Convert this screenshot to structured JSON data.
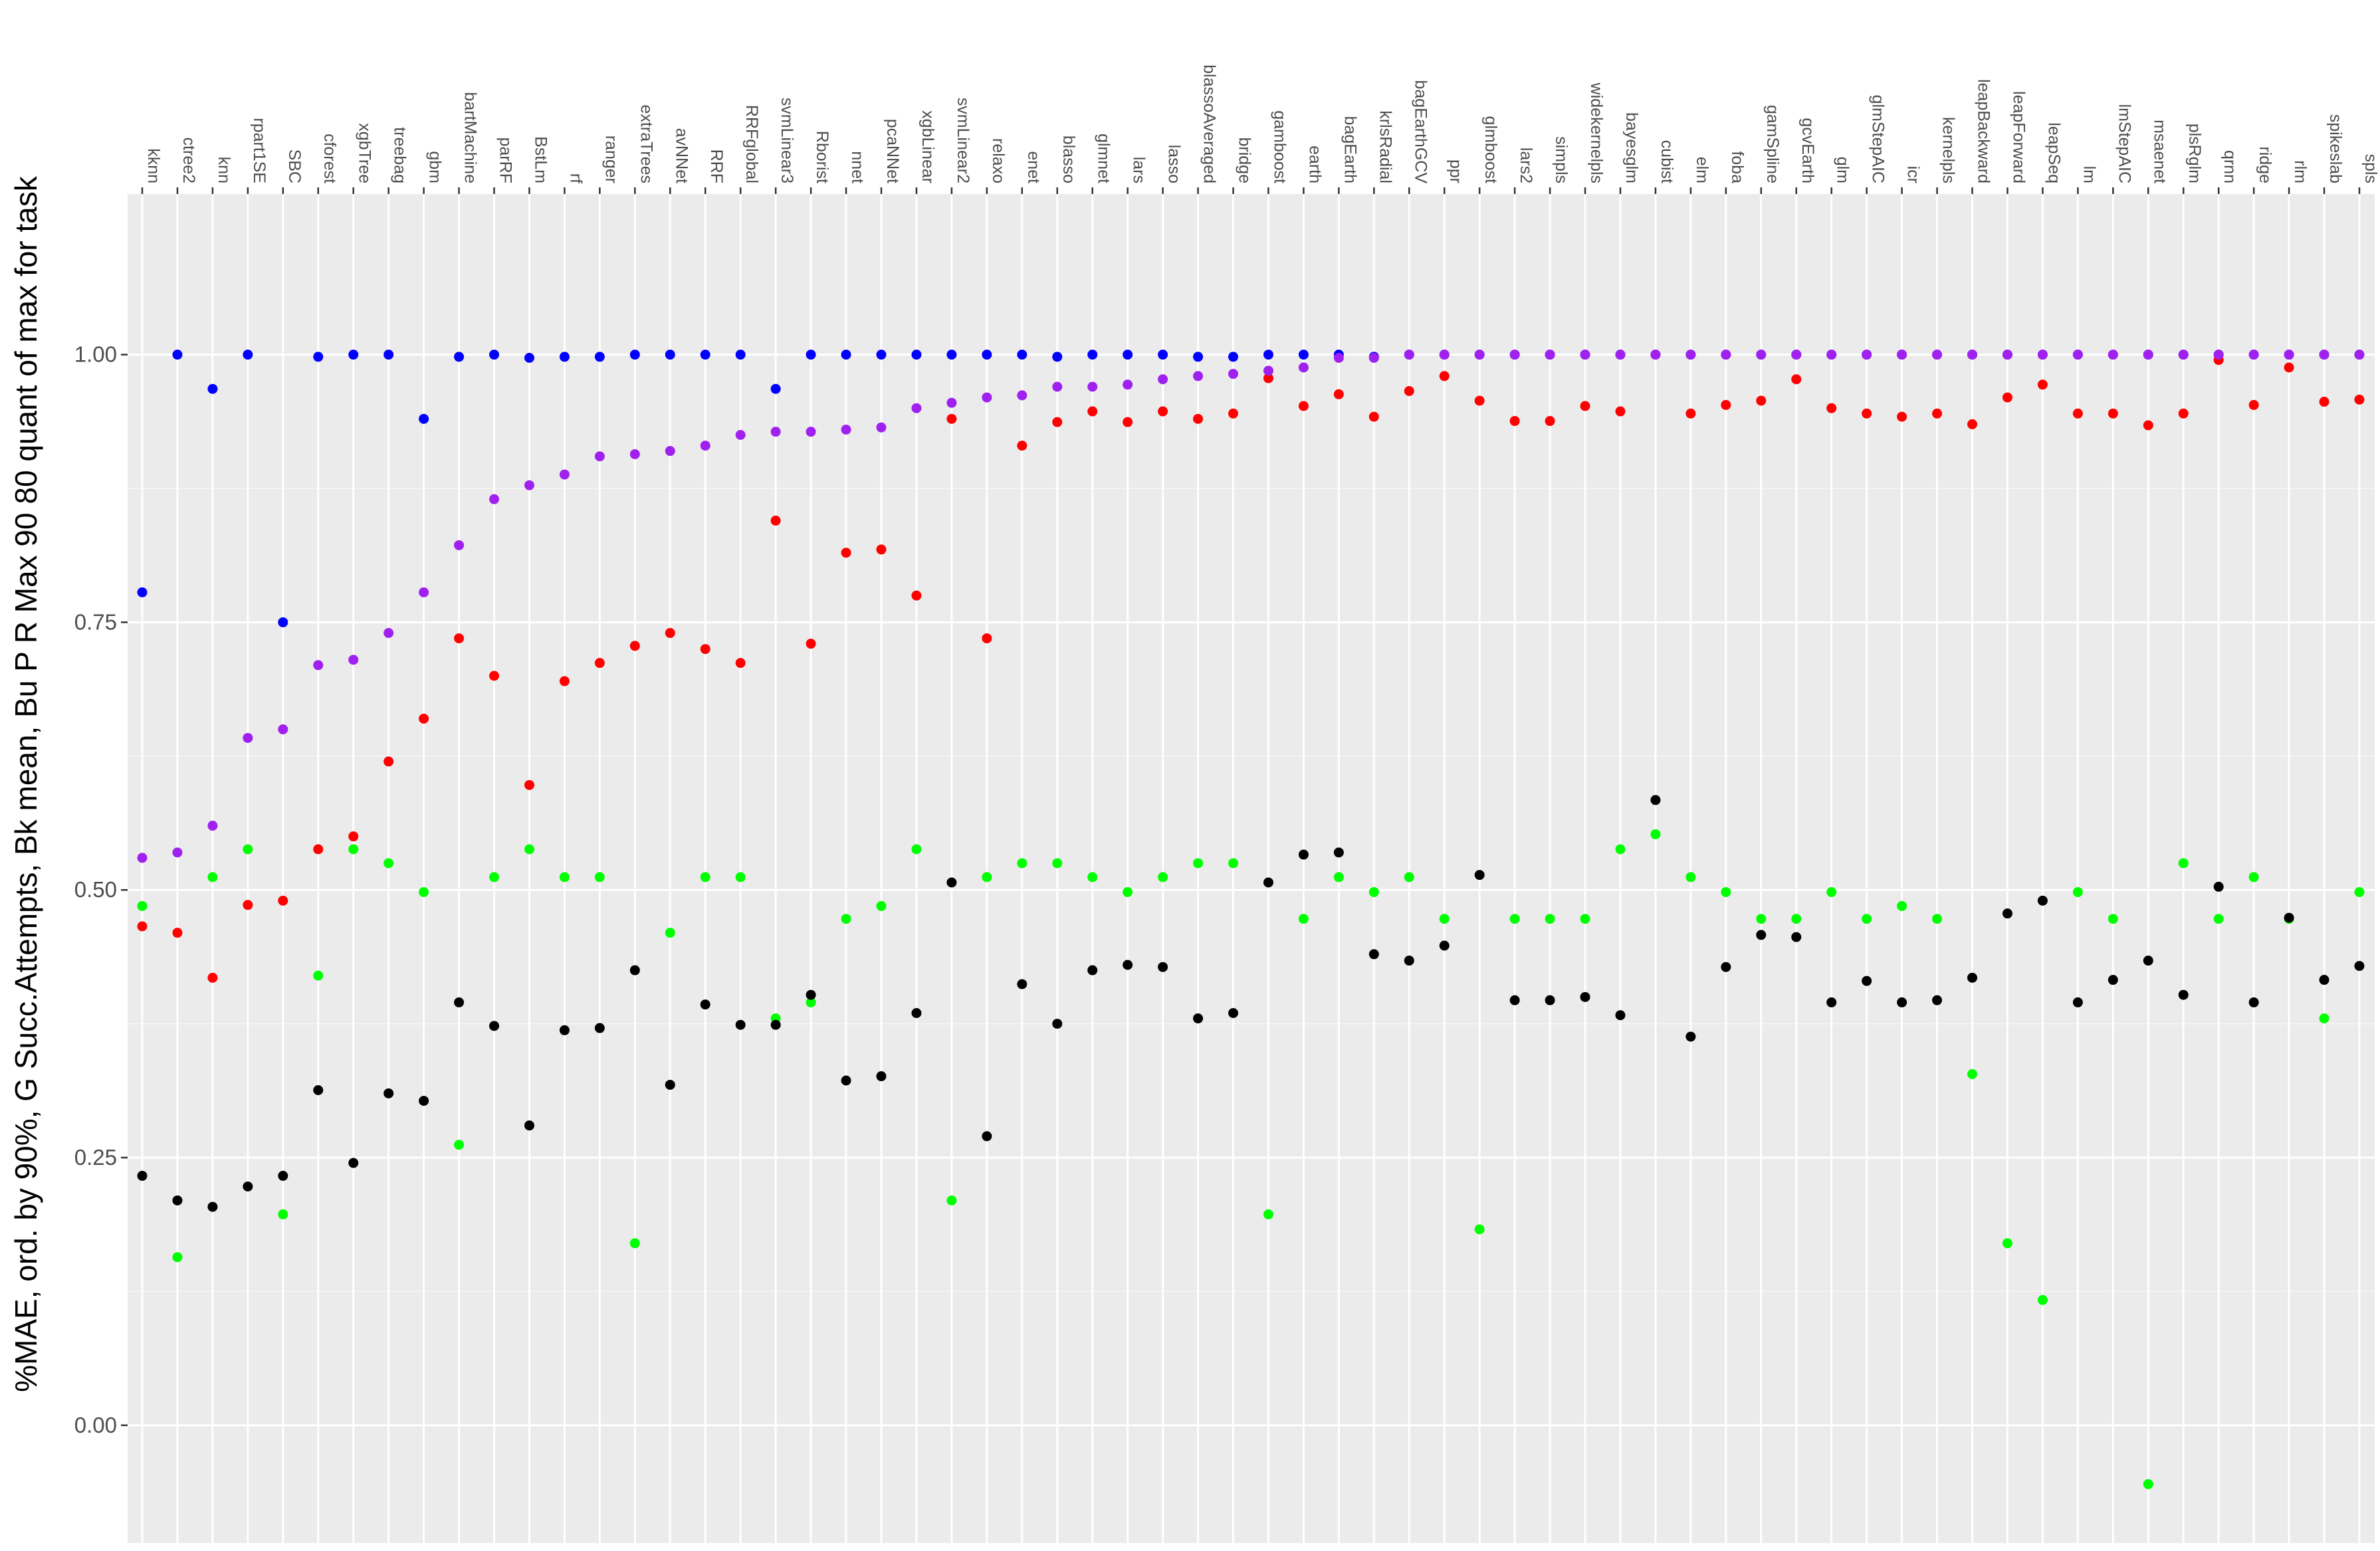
{
  "chart_data": {
    "type": "scatter",
    "title": "",
    "xlabel": "",
    "ylabel": "%MAE, ord. by 90%, G Succ.Attempts, Bk mean, Bu P R Max 90 80 quant of max for task",
    "x_axis_position": "top",
    "x_tick_label_rotation": "vertical",
    "ylim": [
      -0.11,
      1.15
    ],
    "y_ticks": [
      0.0,
      0.25,
      0.5,
      0.75,
      1.0
    ],
    "y_tick_labels": [
      "0.00",
      "0.25",
      "0.50",
      "0.75",
      "1.00"
    ],
    "grid": true,
    "legend": "none",
    "panel_background": "#ebebeb",
    "grid_color": "#ffffff",
    "categories": [
      "kknn",
      "ctree2",
      "knn",
      "rpart1SE",
      "SBC",
      "cforest",
      "xgbTree",
      "treebag",
      "gbm",
      "bartMachine",
      "parRF",
      "BstLm",
      "rf",
      "ranger",
      "extraTrees",
      "avNNet",
      "RRF",
      "RRFglobal",
      "svmLinear3",
      "Rborist",
      "nnet",
      "pcaNNet",
      "xgbLinear",
      "svmLinear2",
      "relaxo",
      "enet",
      "blasso",
      "glmnet",
      "lars",
      "lasso",
      "blassoAveraged",
      "bridge",
      "gamboost",
      "earth",
      "bagEarth",
      "krlsRadial",
      "bagEarthGCV",
      "ppr",
      "glmboost",
      "lars2",
      "simpls",
      "widekernelpls",
      "bayesglm",
      "cubist",
      "elm",
      "foba",
      "gamSpline",
      "gcvEarth",
      "glm",
      "glmStepAIC",
      "icr",
      "kernelpls",
      "leapBackward",
      "leapForward",
      "leapSeq",
      "lm",
      "lmStepAIC",
      "msaenet",
      "plsRglm",
      "qrnn",
      "ridge",
      "rlm",
      "spikeslab",
      "spls"
    ],
    "series": [
      {
        "color": "#0000ff",
        "values": [
          0.778,
          1.0,
          0.968,
          1.0,
          0.75,
          0.998,
          1.0,
          1.0,
          0.94,
          0.998,
          1.0,
          0.997,
          0.998,
          0.998,
          1.0,
          1.0,
          1.0,
          1.0,
          0.968,
          1.0,
          1.0,
          1.0,
          1.0,
          1.0,
          1.0,
          1.0,
          0.998,
          1.0,
          1.0,
          1.0,
          0.998,
          0.998,
          1.0,
          1.0,
          1.0,
          0.998,
          1.0,
          1.0,
          1.0,
          1.0,
          1.0,
          1.0,
          1.0,
          1.0,
          1.0,
          1.0,
          1.0,
          1.0,
          1.0,
          1.0,
          1.0,
          1.0,
          1.0,
          1.0,
          1.0,
          1.0,
          1.0,
          1.0,
          1.0,
          1.0,
          1.0,
          1.0,
          1.0,
          1.0
        ]
      },
      {
        "color": "#ff0000",
        "values": [
          0.466,
          0.46,
          0.418,
          0.486,
          0.49,
          0.538,
          0.55,
          0.62,
          0.66,
          0.735,
          0.7,
          0.598,
          0.695,
          0.712,
          0.728,
          0.74,
          0.725,
          0.712,
          0.845,
          0.73,
          0.815,
          0.818,
          0.775,
          0.94,
          0.735,
          0.915,
          0.937,
          0.947,
          0.937,
          0.947,
          0.94,
          0.945,
          0.978,
          0.952,
          0.963,
          0.942,
          0.966,
          0.98,
          0.957,
          0.938,
          0.938,
          0.952,
          0.947,
          1.0,
          0.945,
          0.953,
          0.957,
          0.977,
          0.95,
          0.945,
          0.942,
          0.945,
          0.935,
          0.96,
          0.972,
          0.945,
          0.945,
          0.934,
          0.945,
          0.995,
          0.953,
          0.988,
          0.956,
          0.958
        ]
      },
      {
        "color": "#a020f0",
        "values": [
          0.53,
          0.535,
          0.56,
          0.642,
          0.65,
          0.71,
          0.715,
          0.74,
          0.778,
          0.822,
          0.865,
          0.878,
          0.888,
          0.905,
          0.907,
          0.91,
          0.915,
          0.925,
          0.928,
          0.928,
          0.93,
          0.932,
          0.95,
          0.955,
          0.96,
          0.962,
          0.97,
          0.97,
          0.972,
          0.977,
          0.98,
          0.982,
          0.985,
          0.988,
          0.997,
          0.997,
          1.0,
          1.0,
          1.0,
          1.0,
          1.0,
          1.0,
          1.0,
          1.0,
          1.0,
          1.0,
          1.0,
          1.0,
          1.0,
          1.0,
          1.0,
          1.0,
          1.0,
          1.0,
          1.0,
          1.0,
          1.0,
          1.0,
          1.0,
          1.0,
          1.0,
          1.0,
          1.0,
          1.0
        ]
      },
      {
        "color": "#00ff00",
        "values": [
          0.485,
          0.157,
          0.512,
          0.538,
          0.197,
          0.42,
          0.538,
          0.525,
          0.498,
          0.262,
          0.512,
          0.538,
          0.512,
          0.512,
          0.17,
          0.46,
          0.512,
          0.512,
          0.38,
          0.395,
          0.473,
          0.485,
          0.538,
          0.21,
          0.512,
          0.525,
          0.525,
          0.512,
          0.498,
          0.512,
          0.525,
          0.525,
          0.197,
          0.473,
          0.512,
          0.498,
          0.512,
          0.473,
          0.183,
          0.473,
          0.473,
          0.473,
          0.538,
          0.552,
          0.512,
          0.498,
          0.473,
          0.473,
          0.498,
          0.473,
          0.485,
          0.473,
          0.328,
          0.17,
          0.117,
          0.498,
          0.473,
          -0.055,
          0.525,
          0.473,
          0.512,
          0.473,
          0.38,
          0.498
        ]
      },
      {
        "color": "#000000",
        "values": [
          0.233,
          0.21,
          0.204,
          0.223,
          0.233,
          0.313,
          0.245,
          0.31,
          0.303,
          0.395,
          0.373,
          0.28,
          0.369,
          0.371,
          0.425,
          0.318,
          0.393,
          0.374,
          0.374,
          0.402,
          0.322,
          0.326,
          0.385,
          0.507,
          0.27,
          0.412,
          0.375,
          0.425,
          0.43,
          0.428,
          0.38,
          0.385,
          0.507,
          0.533,
          0.535,
          0.44,
          0.434,
          0.448,
          0.514,
          0.397,
          0.397,
          0.4,
          0.383,
          0.584,
          0.363,
          0.428,
          0.458,
          0.456,
          0.395,
          0.415,
          0.395,
          0.397,
          0.418,
          0.478,
          0.49,
          0.395,
          0.416,
          0.434,
          0.402,
          0.503,
          0.395,
          0.474,
          0.416,
          0.429
        ]
      }
    ]
  }
}
